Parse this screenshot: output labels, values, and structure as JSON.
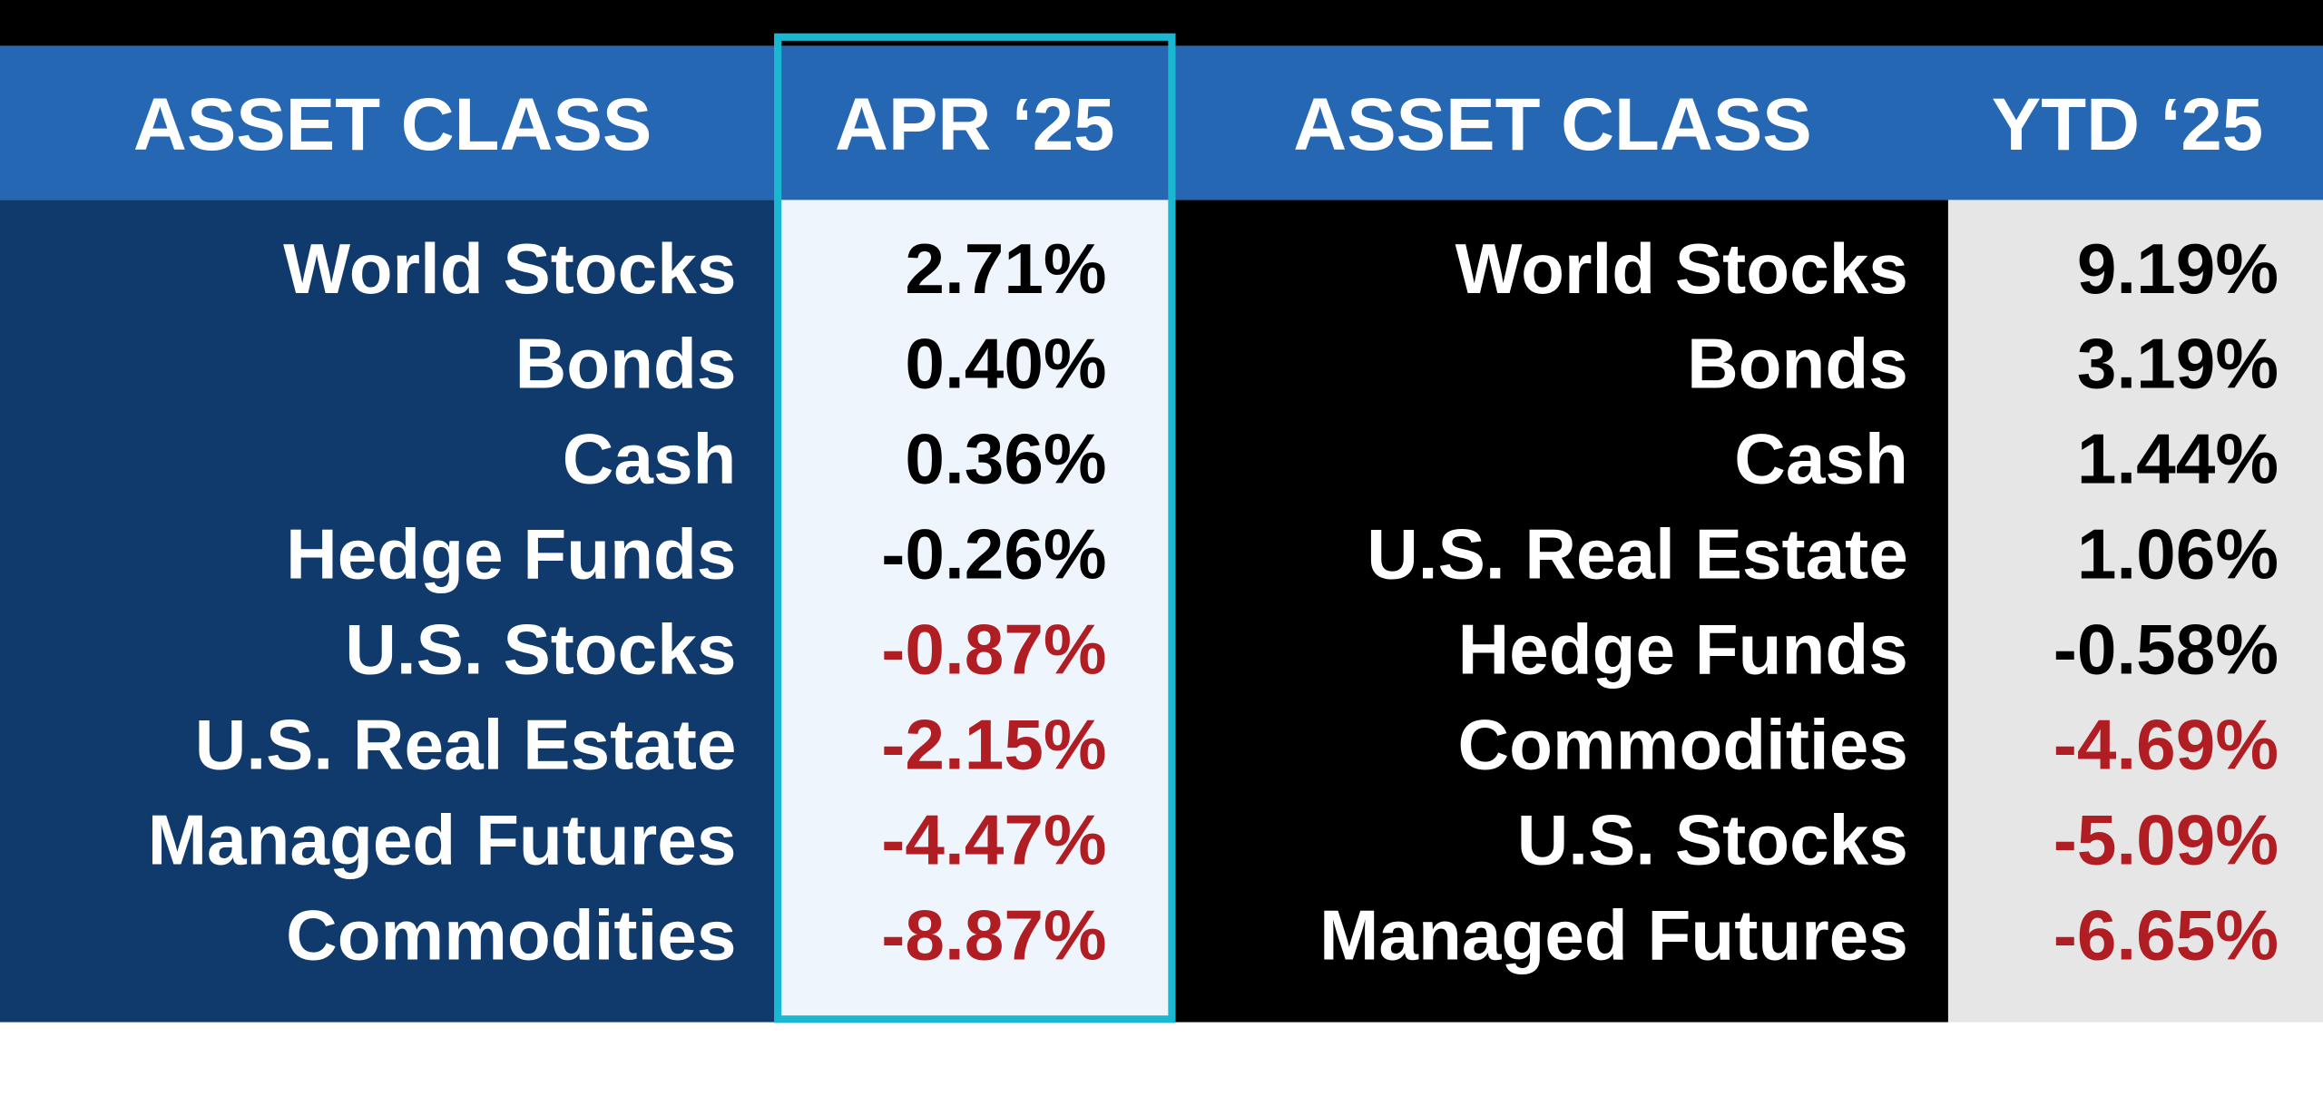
{
  "headers": [
    "ASSET CLASS",
    "APR ‘25",
    "ASSET CLASS",
    "YTD ‘25"
  ],
  "left": {
    "rows": [
      {
        "asset": "World Stocks",
        "value": "2.71%",
        "color": "#000000"
      },
      {
        "asset": "Bonds",
        "value": "0.40%",
        "color": "#000000"
      },
      {
        "asset": "Cash",
        "value": "0.36%",
        "color": "#000000"
      },
      {
        "asset": "Hedge Funds",
        "value": "-0.26%",
        "color": "#000000"
      },
      {
        "asset": "U.S. Stocks",
        "value": "-0.87%",
        "color": "#b01e24"
      },
      {
        "asset": "U.S. Real Estate",
        "value": "-2.15%",
        "color": "#b01e24"
      },
      {
        "asset": "Managed Futures",
        "value": "-4.47%",
        "color": "#b01e24"
      },
      {
        "asset": "Commodities",
        "value": "-8.87%",
        "color": "#b01e24"
      }
    ]
  },
  "right": {
    "rows": [
      {
        "asset": "World Stocks",
        "value": "9.19%",
        "color": "#000000"
      },
      {
        "asset": "Bonds",
        "value": "3.19%",
        "color": "#000000"
      },
      {
        "asset": "Cash",
        "value": "1.44%",
        "color": "#000000"
      },
      {
        "asset": "U.S. Real Estate",
        "value": "1.06%",
        "color": "#000000"
      },
      {
        "asset": "Hedge Funds",
        "value": "-0.58%",
        "color": "#000000"
      },
      {
        "asset": "Commodities",
        "value": "-4.69%",
        "color": "#b01e24"
      },
      {
        "asset": "U.S. Stocks",
        "value": "-5.09%",
        "color": "#b01e24"
      },
      {
        "asset": "Managed Futures",
        "value": "-6.65%",
        "color": "#b01e24"
      }
    ]
  }
}
